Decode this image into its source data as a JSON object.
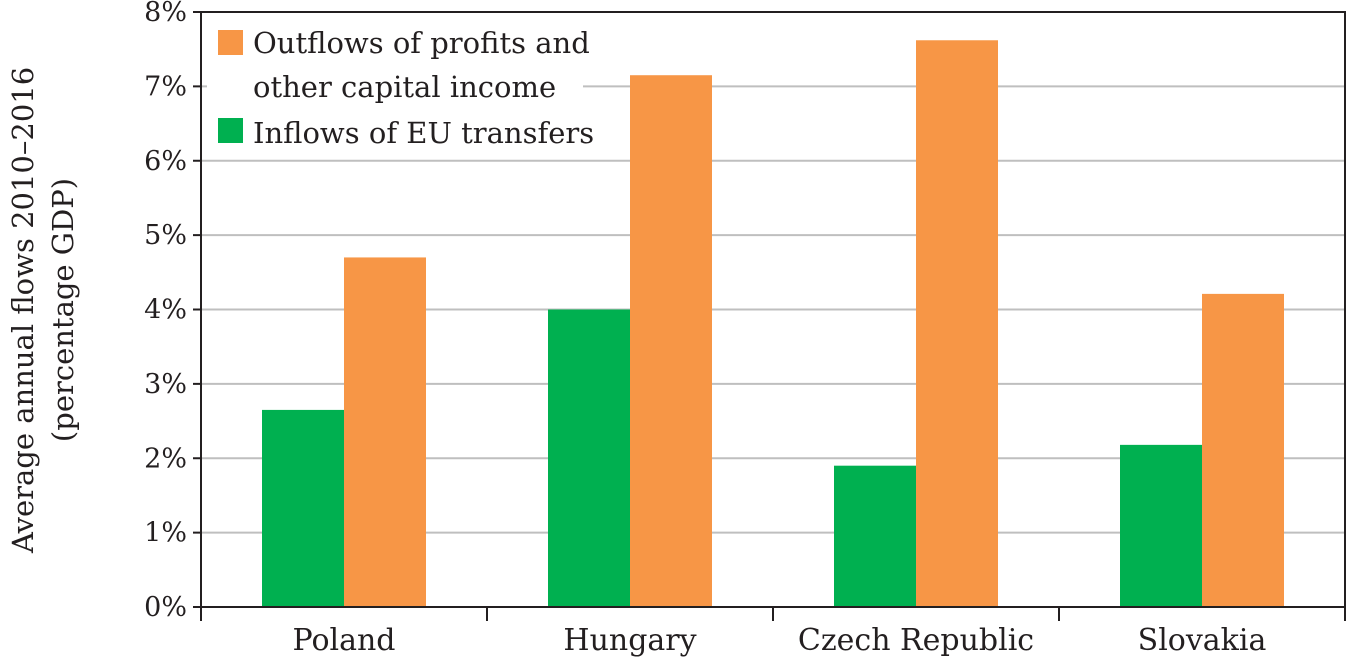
{
  "chart_data": {
    "type": "bar",
    "title": "",
    "xlabel": "",
    "ylabel": [
      "Average annual flows 2010–2016",
      "(percentage GDP)"
    ],
    "categories": [
      "Poland",
      "Hungary",
      "Czech Republic",
      "Slovakia"
    ],
    "series": [
      {
        "name": "Inflows of EU transfers",
        "color": "#00b050",
        "values": [
          2.65,
          4.0,
          1.9,
          2.18
        ]
      },
      {
        "name": "Outflows of profits and other capital income",
        "name_lines": [
          "Outflows of profits and",
          "other capital income"
        ],
        "color": "#f79646",
        "values": [
          4.7,
          7.15,
          7.62,
          4.21
        ]
      }
    ],
    "ylim": [
      0,
      8
    ],
    "yticks": [
      0,
      1,
      2,
      3,
      4,
      5,
      6,
      7,
      8
    ],
    "ytick_labels": [
      "0%",
      "1%",
      "2%",
      "3%",
      "4%",
      "5%",
      "6%",
      "7%",
      "8%"
    ],
    "grid": true,
    "legend_position": "top-left",
    "legend_order": [
      1,
      0
    ]
  },
  "colors": {
    "axis": "#231f20",
    "grid": "#bfbfbf",
    "text": "#231f20"
  }
}
